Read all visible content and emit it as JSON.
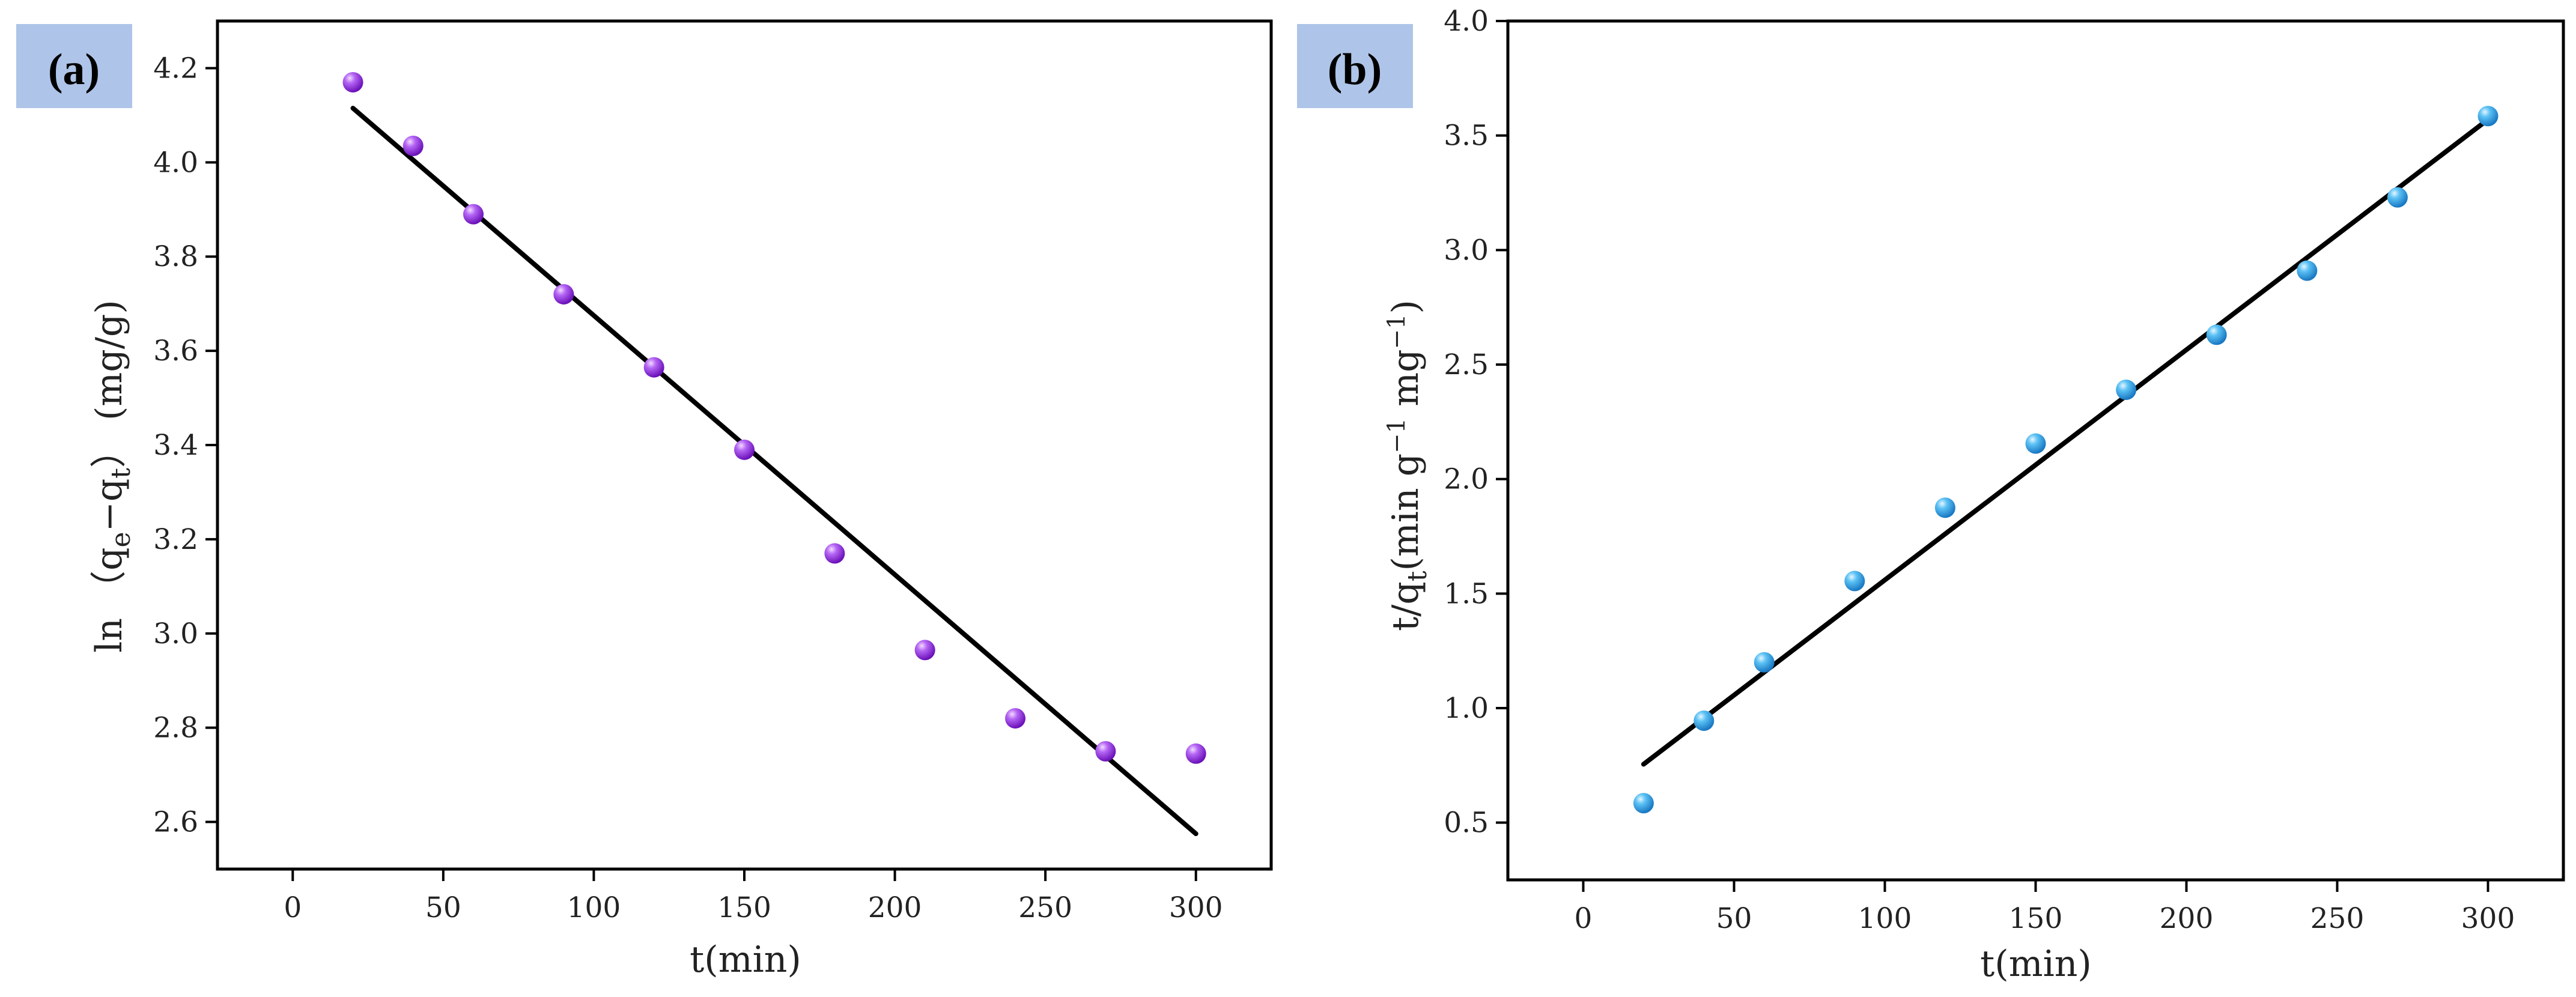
{
  "chart_data": [
    {
      "panel": "(a)",
      "type": "scatter",
      "title": "",
      "xlabel": "t(min)",
      "ylabel": {
        "prefix": "ln （q",
        "sub1": "e",
        "mid": "−q",
        "sub2": "t",
        "suffix": "） (mg/g)"
      },
      "xlim": [
        -25,
        325
      ],
      "ylim": [
        2.5,
        4.3
      ],
      "xticks": [
        0,
        50,
        100,
        150,
        200,
        250,
        300
      ],
      "yticks": [
        2.6,
        2.8,
        3.0,
        3.2,
        3.4,
        3.6,
        3.8,
        4.0,
        4.2
      ],
      "ytick_labels": [
        "2.6",
        "2.8",
        "3.0",
        "3.2",
        "3.4",
        "3.6",
        "3.8",
        "4.0",
        "4.2"
      ],
      "xtick_labels": [
        "0",
        "50",
        "100",
        "150",
        "200",
        "250",
        "300"
      ],
      "grid": false,
      "point_color": "#9b30f0",
      "line_color": "#000000",
      "series": [
        {
          "name": "data",
          "x": [
            20,
            40,
            60,
            90,
            120,
            150,
            180,
            210,
            240,
            270,
            300
          ],
          "y": [
            4.17,
            4.035,
            3.89,
            3.72,
            3.565,
            3.39,
            3.17,
            2.965,
            2.82,
            2.75,
            2.745
          ]
        },
        {
          "name": "fit",
          "x": [
            20,
            300
          ],
          "y": [
            4.115,
            2.575
          ]
        }
      ]
    },
    {
      "panel": "(b)",
      "type": "scatter",
      "title": "",
      "xlabel": "t(min)",
      "ylabel": {
        "prefix": "t/q",
        "sub1": "t",
        "mid": "(min g",
        "sup1": "−1",
        "mid2": " mg",
        "sup2": "−1",
        "suffix": ")"
      },
      "xlim": [
        -25,
        325
      ],
      "ylim": [
        0.25,
        4.0
      ],
      "xticks": [
        0,
        50,
        100,
        150,
        200,
        250,
        300
      ],
      "yticks": [
        0.5,
        1.0,
        1.5,
        2.0,
        2.5,
        3.0,
        3.5,
        4.0
      ],
      "ytick_labels": [
        "0.5",
        "1.0",
        "1.5",
        "2.0",
        "2.5",
        "3.0",
        "3.5",
        "4.0"
      ],
      "xtick_labels": [
        "0",
        "50",
        "100",
        "150",
        "200",
        "250",
        "300"
      ],
      "grid": false,
      "point_color": "#3ab0ee",
      "line_color": "#000000",
      "series": [
        {
          "name": "data",
          "x": [
            20,
            40,
            60,
            90,
            120,
            150,
            180,
            210,
            240,
            270,
            300
          ],
          "y": [
            0.585,
            0.945,
            1.2,
            1.555,
            1.875,
            2.155,
            2.39,
            2.63,
            2.91,
            3.23,
            3.585
          ]
        },
        {
          "name": "fit",
          "x": [
            20,
            300
          ],
          "y": [
            0.755,
            3.57
          ]
        }
      ]
    }
  ]
}
